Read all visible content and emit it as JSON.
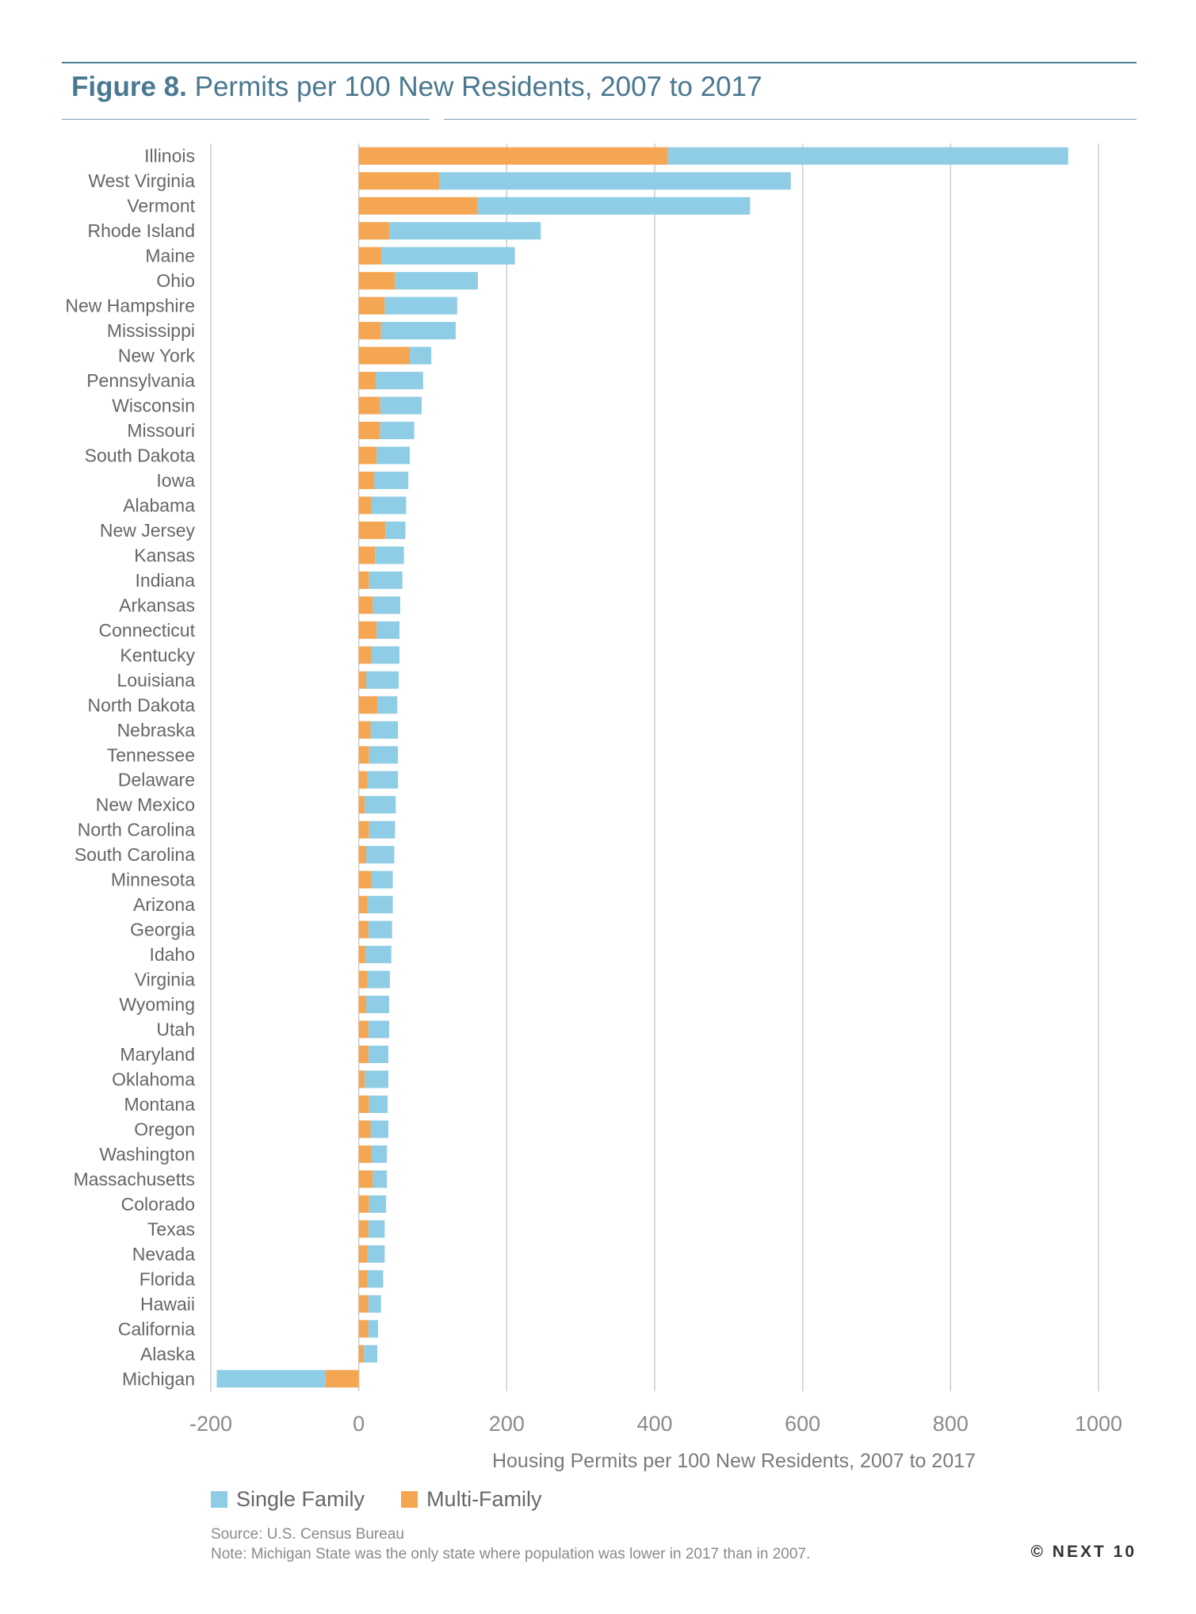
{
  "header": {
    "figure_label": "Figure 8.",
    "title": "Permits per 100 New Residents, 2007 to 2017"
  },
  "colors": {
    "single_family": "#8ecde5",
    "multi_family": "#f5a652",
    "gridline": "#cccccc",
    "title": "#4a7890"
  },
  "chart_data": {
    "type": "bar",
    "orientation": "horizontal",
    "stacked": true,
    "xlabel": "Housing Permits per 100 New Residents, 2007 to 2017",
    "xlim": [
      -200,
      1000
    ],
    "xticks": [
      -200,
      0,
      200,
      400,
      600,
      800,
      1000
    ],
    "grid": true,
    "legend": "bottom-left",
    "categories": [
      "Illinois",
      "West Virginia",
      "Vermont",
      "Rhode Island",
      "Maine",
      "Ohio",
      "New Hampshire",
      "Mississippi",
      "New York",
      "Pennsylvania",
      "Wisconsin",
      "Missouri",
      "South Dakota",
      "Iowa",
      "Alabama",
      "New Jersey",
      "Kansas",
      "Indiana",
      "Arkansas",
      "Connecticut",
      "Kentucky",
      "Louisiana",
      "North Dakota",
      "Nebraska",
      "Tennessee",
      "Delaware",
      "New Mexico",
      "North Carolina",
      "South Carolina",
      "Minnesota",
      "Arizona",
      "Georgia",
      "Idaho",
      "Virginia",
      "Wyoming",
      "Utah",
      "Maryland",
      "Oklahoma",
      "Montana",
      "Oregon",
      "Washington",
      "Massachusetts",
      "Colorado",
      "Texas",
      "Nevada",
      "Florida",
      "Hawaii",
      "California",
      "Alaska",
      "Michigan"
    ],
    "series": [
      {
        "name": "Multi-Family",
        "values": [
          418,
          109,
          160,
          41,
          31,
          49,
          35,
          30,
          69,
          23,
          29,
          29,
          24,
          21,
          17,
          36,
          22,
          14,
          19,
          24,
          17,
          10,
          25,
          16,
          14,
          12,
          8,
          14,
          10,
          17,
          12,
          13,
          9,
          12,
          10,
          13,
          13,
          8,
          14,
          16,
          17,
          19,
          14,
          13,
          12,
          12,
          13,
          13,
          7,
          -45
        ]
      },
      {
        "name": "Single Family",
        "values": [
          541,
          475,
          369,
          205,
          180,
          112,
          98,
          101,
          29,
          64,
          56,
          46,
          45,
          46,
          47,
          27,
          39,
          45,
          37,
          31,
          38,
          44,
          27,
          37,
          39,
          41,
          42,
          35,
          38,
          29,
          34,
          32,
          35,
          30,
          31,
          28,
          27,
          32,
          25,
          24,
          21,
          19,
          23,
          22,
          23,
          21,
          17,
          13,
          18,
          -147
        ]
      }
    ]
  },
  "legend": {
    "items": [
      {
        "label": "Single Family"
      },
      {
        "label": "Multi-Family"
      }
    ]
  },
  "footer": {
    "source": "Source: U.S. Census Bureau",
    "note": "Note: Michigan State was the only state where population was lower in 2017 than in 2007.",
    "brand": "© NEXT 10"
  }
}
